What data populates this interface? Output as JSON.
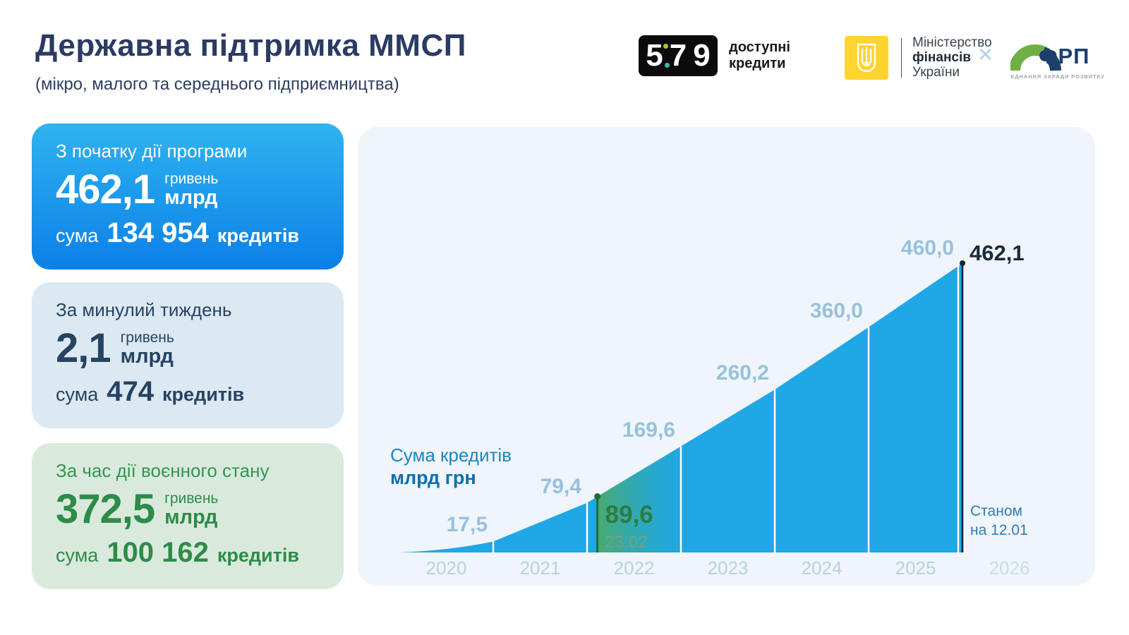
{
  "header": {
    "title": "Державна підтримка ММСП",
    "subtitle": "(мікро, малого та середнього підприємництва)",
    "logos": {
      "credits579": {
        "d1": "5",
        "d2": "7",
        "d3": "9",
        "label_line1": "доступні",
        "label_line2": "кредити"
      },
      "minfin": {
        "line1": "Міністерство",
        "line2": "фінансів",
        "line3": "України"
      },
      "separator": "×",
      "frp": {
        "name": "ФРП",
        "tagline": "ЄДНАННЯ ЗАРАДИ РОЗВИТКУ"
      }
    }
  },
  "cards": [
    {
      "heading": "З початку дії програми",
      "amount": "462,1",
      "unit_top": "гривень",
      "unit_bottom": "млрд",
      "count_prefix": "сума",
      "count": "134 954",
      "count_suffix": "кредитів"
    },
    {
      "heading": "За минулий тиждень",
      "amount": "2,1",
      "unit_top": "гривень",
      "unit_bottom": "млрд",
      "count_prefix": "сума",
      "count": "474",
      "count_suffix": "кредитів"
    },
    {
      "heading": "За час дії воєнного стану",
      "amount": "372,5",
      "unit_top": "гривень",
      "unit_bottom": "млрд",
      "count_prefix": "сума",
      "count": "100 162",
      "count_suffix": "кредитів"
    }
  ],
  "chart_data": {
    "type": "area",
    "title": "Сума кредитів",
    "unit_label": "млрд грн",
    "x_categories": [
      "2020",
      "2021",
      "2022",
      "2023",
      "2024",
      "2025",
      "2026"
    ],
    "points": [
      {
        "year": "2020",
        "value": 17.5,
        "label": "17,5"
      },
      {
        "year": "2021",
        "value": 79.4,
        "label": "79,4"
      },
      {
        "year": "2022",
        "value": 169.6,
        "label": "169,6"
      },
      {
        "year": "2023",
        "value": 260.2,
        "label": "260,2"
      },
      {
        "year": "2024",
        "value": 360.0,
        "label": "360,0"
      },
      {
        "year": "2025",
        "value": 460.0,
        "label": "460,0"
      }
    ],
    "annotations": {
      "war_start": {
        "value": 89.6,
        "label": "89,6",
        "date": "23.02"
      },
      "current": {
        "value": 462.1,
        "label": "462,1",
        "note": [
          "Станом",
          "на 12.01"
        ]
      }
    },
    "ylim": [
      0,
      462.1
    ],
    "grid": false,
    "legend": "none",
    "colors": {
      "area": "#1FA7E6",
      "divider": "#FFFFFF",
      "war_accent": "#206B38",
      "war_gradient_start": "#4CAB67",
      "current_line": "#15222F",
      "value_label": "#97C1DC",
      "panel_bg": "#EFF5FA",
      "card_blue_top": "#2FB3F0",
      "card_blue_bottom": "#0B80E8",
      "card_week_bg": "#DCE9F2",
      "card_war_bg": "#D9EADD"
    }
  }
}
